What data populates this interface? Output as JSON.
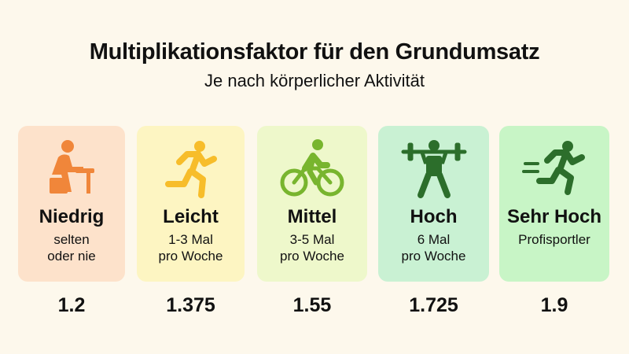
{
  "title": "Multiplikationsfaktor für den Grundumsatz",
  "subtitle": "Je nach körperlicher Aktivität",
  "levels": [
    {
      "label": "Niedrig",
      "desc1": "selten",
      "desc2": "oder nie",
      "factor": "1.2",
      "icon": "sitting-person-icon",
      "bg": "#fde2cb",
      "color": "#f0863a"
    },
    {
      "label": "Leicht",
      "desc1": "1-3 Mal",
      "desc2": "pro Woche",
      "factor": "1.375",
      "icon": "running-person-icon",
      "bg": "#fdf5c2",
      "color": "#f7bd2a"
    },
    {
      "label": "Mittel",
      "desc1": "3-5 Mal",
      "desc2": "pro Woche",
      "factor": "1.55",
      "icon": "cyclist-icon",
      "bg": "#eef8cb",
      "color": "#78b52e"
    },
    {
      "label": "Hoch",
      "desc1": "6 Mal",
      "desc2": "pro Woche",
      "factor": "1.725",
      "icon": "weightlifter-icon",
      "bg": "#c9f1d3",
      "color": "#2c6e2b"
    },
    {
      "label": "Sehr Hoch",
      "desc1": "Profisportler",
      "desc2": "",
      "factor": "1.9",
      "icon": "sprinter-icon",
      "bg": "#c8f5c6",
      "color": "#2c6e2b"
    }
  ]
}
